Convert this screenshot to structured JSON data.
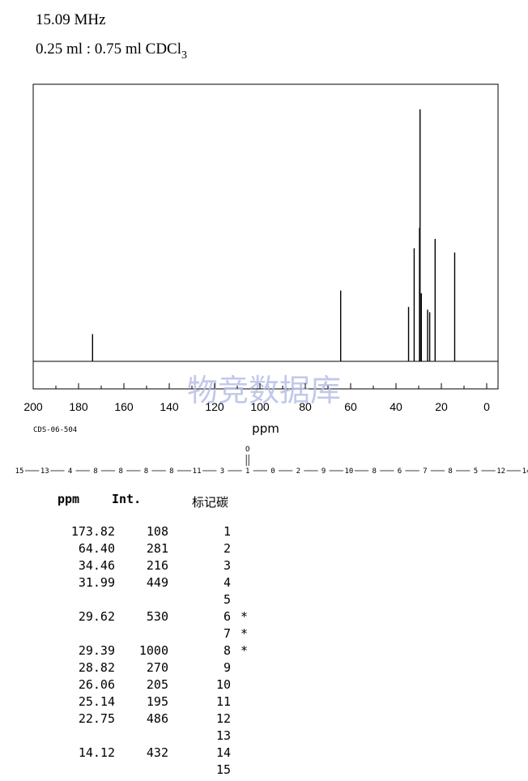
{
  "header": {
    "frequency": "15.09 MHz",
    "solvent_prefix": "0.25 ml : 0.75 ml CDCl",
    "solvent_sub": "3"
  },
  "code_label": "CDS-06-504",
  "watermark": "物竞数据库",
  "chart_data": {
    "type": "line",
    "xlabel": "ppm",
    "xlim": [
      200,
      -5
    ],
    "x_reversed": true,
    "ylim": [
      -0.11,
      1.0
    ],
    "xticks": [
      200,
      180,
      160,
      140,
      120,
      100,
      80,
      60,
      40,
      20,
      0
    ],
    "grid": false,
    "series": [
      {
        "peaks": [
          {
            "x": 173.82,
            "y": 0.108
          },
          {
            "x": 64.4,
            "y": 0.281
          },
          {
            "x": 34.46,
            "y": 0.216
          },
          {
            "x": 31.99,
            "y": 0.449
          },
          {
            "x": 29.62,
            "y": 0.53
          },
          {
            "x": 29.39,
            "y": 1.0
          },
          {
            "x": 28.82,
            "y": 0.27
          },
          {
            "x": 26.06,
            "y": 0.205
          },
          {
            "x": 25.14,
            "y": 0.195
          },
          {
            "x": 22.75,
            "y": 0.486
          },
          {
            "x": 14.12,
            "y": 0.432
          }
        ]
      }
    ]
  },
  "structure_line": {
    "atom_label": "O",
    "tokens": [
      "15",
      "13",
      "4",
      "8",
      "8",
      "8",
      "8",
      "11",
      "3",
      "1",
      "0",
      "2",
      "9",
      "10",
      "8",
      "6",
      "7",
      "8",
      "5",
      "12",
      "14"
    ]
  },
  "table": {
    "headers": {
      "ppm": "ppm",
      "int": "Int.",
      "carbon": "标记碳"
    },
    "rows": [
      {
        "ppm": "173.82",
        "int": "108",
        "c": "1",
        "star": ""
      },
      {
        "ppm": "64.40",
        "int": "281",
        "c": "2",
        "star": ""
      },
      {
        "ppm": "34.46",
        "int": "216",
        "c": "3",
        "star": ""
      },
      {
        "ppm": "31.99",
        "int": "449",
        "c": "4",
        "star": ""
      },
      {
        "ppm": "",
        "int": "",
        "c": "5",
        "star": ""
      },
      {
        "ppm": "29.62",
        "int": "530",
        "c": "6",
        "star": "*"
      },
      {
        "ppm": "",
        "int": "",
        "c": "7",
        "star": "*"
      },
      {
        "ppm": "29.39",
        "int": "1000",
        "c": "8",
        "star": "*"
      },
      {
        "ppm": "28.82",
        "int": "270",
        "c": "9",
        "star": ""
      },
      {
        "ppm": "26.06",
        "int": "205",
        "c": "10",
        "star": ""
      },
      {
        "ppm": "25.14",
        "int": "195",
        "c": "11",
        "star": ""
      },
      {
        "ppm": "22.75",
        "int": "486",
        "c": "12",
        "star": ""
      },
      {
        "ppm": "",
        "int": "",
        "c": "13",
        "star": ""
      },
      {
        "ppm": "14.12",
        "int": "432",
        "c": "14",
        "star": ""
      },
      {
        "ppm": "",
        "int": "",
        "c": "15",
        "star": ""
      }
    ]
  }
}
